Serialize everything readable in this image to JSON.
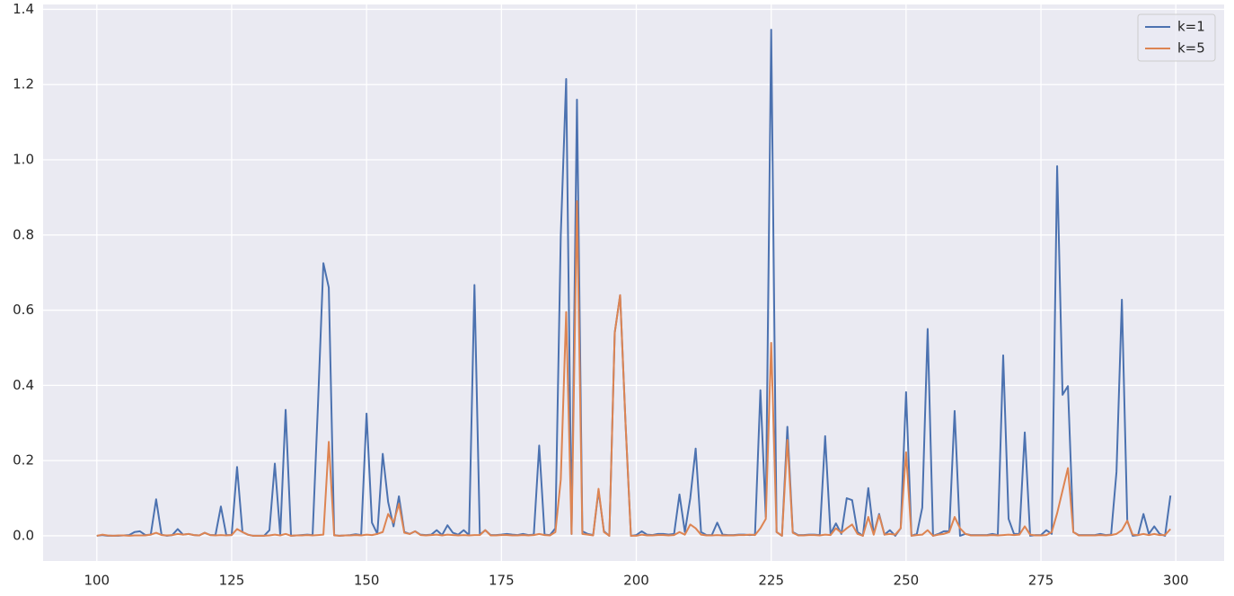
{
  "chart_data": {
    "type": "line",
    "x": [
      100,
      101,
      102,
      103,
      104,
      105,
      106,
      107,
      108,
      109,
      110,
      111,
      112,
      113,
      114,
      115,
      116,
      117,
      118,
      119,
      120,
      121,
      122,
      123,
      124,
      125,
      126,
      127,
      128,
      129,
      130,
      131,
      132,
      133,
      134,
      135,
      136,
      137,
      138,
      139,
      140,
      141,
      142,
      143,
      144,
      145,
      146,
      147,
      148,
      149,
      150,
      151,
      152,
      153,
      154,
      155,
      156,
      157,
      158,
      159,
      160,
      161,
      162,
      163,
      164,
      165,
      166,
      167,
      168,
      169,
      170,
      171,
      172,
      173,
      174,
      175,
      176,
      177,
      178,
      179,
      180,
      181,
      182,
      183,
      184,
      185,
      186,
      187,
      188,
      189,
      190,
      191,
      192,
      193,
      194,
      195,
      196,
      197,
      198,
      199,
      200,
      201,
      202,
      203,
      204,
      205,
      206,
      207,
      208,
      209,
      210,
      211,
      212,
      213,
      214,
      215,
      216,
      217,
      218,
      219,
      220,
      221,
      222,
      223,
      224,
      225,
      226,
      227,
      228,
      229,
      230,
      231,
      232,
      233,
      234,
      235,
      236,
      237,
      238,
      239,
      240,
      241,
      242,
      243,
      244,
      245,
      246,
      247,
      248,
      249,
      250,
      251,
      252,
      253,
      254,
      255,
      256,
      257,
      258,
      259,
      260,
      261,
      262,
      263,
      264,
      265,
      266,
      267,
      268,
      269,
      270,
      271,
      272,
      273,
      274,
      275,
      276,
      277,
      278,
      279,
      280,
      281,
      282,
      283,
      284,
      285,
      286,
      287,
      288,
      289,
      290,
      291,
      292,
      293,
      294,
      295,
      296,
      297,
      298,
      299
    ],
    "series": [
      {
        "name": "k=1",
        "color": "#4c72b0",
        "values": [
          0,
          0.002,
          0,
          0,
          0,
          0.001,
          0.002,
          0.01,
          0.012,
          0.002,
          0.003,
          0.097,
          0.003,
          0,
          0.002,
          0.018,
          0.003,
          0.005,
          0.002,
          0.001,
          0.008,
          0.002,
          0.002,
          0.078,
          0.002,
          0.002,
          0.183,
          0.01,
          0.003,
          0,
          0,
          0,
          0.015,
          0.192,
          0.002,
          0.335,
          0,
          0.001,
          0.002,
          0.003,
          0.002,
          0.35,
          0.725,
          0.66,
          0.002,
          0,
          0.001,
          0.002,
          0.004,
          0.002,
          0.325,
          0.035,
          0.005,
          0.218,
          0.09,
          0.025,
          0.105,
          0.01,
          0.005,
          0.012,
          0.003,
          0.002,
          0.003,
          0.015,
          0.002,
          0.028,
          0.008,
          0.003,
          0.015,
          0.002,
          0.667,
          0.003,
          0.015,
          0.002,
          0.002,
          0.003,
          0.005,
          0.003,
          0.002,
          0.005,
          0.002,
          0.003,
          0.24,
          0.003,
          0.002,
          0.02,
          0.8,
          1.215,
          0.005,
          1.16,
          0.012,
          0.005,
          0.002,
          0.12,
          0.012,
          0,
          0.54,
          0.64,
          0.3,
          0,
          0.002,
          0.012,
          0.003,
          0.002,
          0.005,
          0.005,
          0.003,
          0.005,
          0.11,
          0.01,
          0.1,
          0.232,
          0.01,
          0.002,
          0.002,
          0.035,
          0.003,
          0.002,
          0.002,
          0.003,
          0.003,
          0.002,
          0.003,
          0.387,
          0.05,
          1.346,
          0.01,
          0,
          0.29,
          0.01,
          0.002,
          0.002,
          0.003,
          0.003,
          0.002,
          0.265,
          0.005,
          0.033,
          0.005,
          0.1,
          0.095,
          0.01,
          0,
          0.127,
          0.005,
          0.058,
          0.003,
          0.015,
          0,
          0.02,
          0.382,
          0,
          0.005,
          0.075,
          0.55,
          0,
          0.005,
          0.012,
          0.012,
          0.332,
          0,
          0.005,
          0.002,
          0.002,
          0.002,
          0.002,
          0.005,
          0.002,
          0.48,
          0.045,
          0.005,
          0.005,
          0.275,
          0,
          0.002,
          0.002,
          0.015,
          0.005,
          0.983,
          0.375,
          0.398,
          0.01,
          0.002,
          0.002,
          0.002,
          0.002,
          0.005,
          0.002,
          0.003,
          0.17,
          0.628,
          0.04,
          0,
          0.002,
          0.058,
          0.005,
          0.025,
          0.005,
          0,
          0.107
        ]
      },
      {
        "name": "k=5",
        "color": "#dd8452",
        "values": [
          0,
          0.003,
          0.001,
          0,
          0.001,
          0.001,
          0,
          0.001,
          0.001,
          0.001,
          0.003,
          0.008,
          0.002,
          0.001,
          0.002,
          0.005,
          0.003,
          0.005,
          0.002,
          0.001,
          0.008,
          0.002,
          0.001,
          0.002,
          0.001,
          0.002,
          0.018,
          0.01,
          0.003,
          0,
          0,
          0,
          0.001,
          0.003,
          0.001,
          0.005,
          0,
          0.001,
          0.001,
          0.002,
          0.001,
          0.002,
          0.003,
          0.25,
          0.001,
          0,
          0.001,
          0.001,
          0.002,
          0.001,
          0.003,
          0.002,
          0.005,
          0.01,
          0.058,
          0.035,
          0.085,
          0.008,
          0.005,
          0.012,
          0.002,
          0.001,
          0.002,
          0.003,
          0.001,
          0.003,
          0.002,
          0.001,
          0.002,
          0.001,
          0.002,
          0.002,
          0.015,
          0.001,
          0.001,
          0.002,
          0.002,
          0.001,
          0.001,
          0.002,
          0.001,
          0.002,
          0.005,
          0.002,
          0.001,
          0.01,
          0.15,
          0.595,
          0.005,
          0.89,
          0.005,
          0.003,
          0.001,
          0.125,
          0.01,
          0,
          0.54,
          0.64,
          0.3,
          0,
          0,
          0.003,
          0.001,
          0.001,
          0.002,
          0.002,
          0.001,
          0.002,
          0.01,
          0.003,
          0.03,
          0.02,
          0.003,
          0.001,
          0.001,
          0.002,
          0.001,
          0.001,
          0.001,
          0.002,
          0.002,
          0.003,
          0.002,
          0.02,
          0.045,
          0.513,
          0.01,
          0,
          0.255,
          0.008,
          0.001,
          0.001,
          0.002,
          0.002,
          0.001,
          0.003,
          0.002,
          0.02,
          0.008,
          0.02,
          0.03,
          0.005,
          0,
          0.05,
          0.003,
          0.055,
          0.003,
          0.005,
          0.003,
          0.02,
          0.222,
          0,
          0.002,
          0.003,
          0.015,
          0,
          0.003,
          0.005,
          0.01,
          0.05,
          0.02,
          0.005,
          0.001,
          0.001,
          0.001,
          0.001,
          0.002,
          0.001,
          0.002,
          0.003,
          0.002,
          0.003,
          0.025,
          0.003,
          0.001,
          0.001,
          0.002,
          0.01,
          0.06,
          0.12,
          0.18,
          0.01,
          0.001,
          0.001,
          0.001,
          0.001,
          0.002,
          0.001,
          0.002,
          0.005,
          0.015,
          0.04,
          0.003,
          0.002,
          0.005,
          0.002,
          0.005,
          0.002,
          0.002,
          0.018
        ]
      }
    ],
    "xlim": [
      90.05,
      308.95
    ],
    "xticks": [
      100,
      125,
      150,
      175,
      200,
      225,
      250,
      275,
      300
    ],
    "ylim": [
      -0.067,
      1.413
    ],
    "yticks": [
      {
        "value": 0,
        "label": "0.0"
      },
      0.2,
      0.4,
      0.6,
      0.8,
      {
        "value": 1,
        "label": "1.0"
      },
      1.2,
      1.4
    ],
    "grid": true,
    "legend": "upper right"
  }
}
